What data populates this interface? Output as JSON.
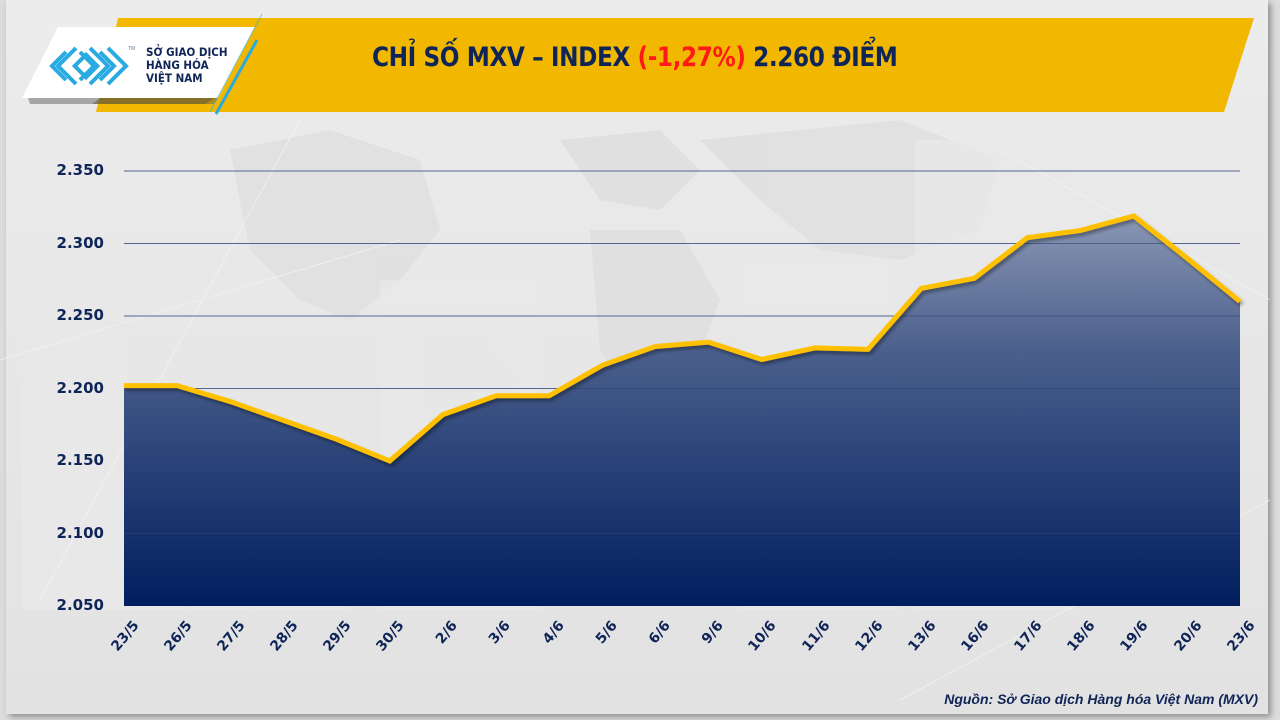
{
  "header": {
    "logo_lines": [
      "SỞ GIAO DỊCH",
      "HÀNG HÓA",
      "VIỆT NAM"
    ],
    "logo_tm": "TM",
    "title_prefix": "CHỈ SỐ MXV – INDEX ",
    "title_change": "(-1,27%)",
    "title_suffix": " 2.260 ĐIỂM"
  },
  "colors": {
    "banner": "#f2b800",
    "line": "#ffc000",
    "area_top": "#8a97b4",
    "area_bottom": "#001e5e",
    "text": "#0f2457",
    "negative": "#ff1a1a",
    "logo_blue": "#29aae2"
  },
  "footer": {
    "source": "Nguồn: Sở Giao dịch Hàng hóa Việt Nam (MXV)"
  },
  "chart_data": {
    "type": "area",
    "title": "CHỈ SỐ MXV – INDEX (-1,27%) 2.260 ĐIỂM",
    "xlabel": "",
    "ylabel": "",
    "ylim": [
      2050,
      2350
    ],
    "yticks": [
      2050,
      2100,
      2150,
      2200,
      2250,
      2300,
      2350
    ],
    "ytick_labels": [
      "2.050",
      "2.100",
      "2.150",
      "2.200",
      "2.250",
      "2.300",
      "2.350"
    ],
    "grid": true,
    "legend": "none",
    "categories": [
      "23/5",
      "26/5",
      "27/5",
      "28/5",
      "29/5",
      "30/5",
      "2/6",
      "3/6",
      "4/6",
      "5/6",
      "6/6",
      "9/6",
      "10/6",
      "11/6",
      "12/6",
      "13/6",
      "16/6",
      "17/6",
      "18/6",
      "19/6",
      "20/6",
      "23/6"
    ],
    "series": [
      {
        "name": "MXV-Index",
        "values": [
          2202,
          2202,
          2191,
          2178,
          2165,
          2150,
          2182,
          2195,
          2195,
          2216,
          2229,
          2232,
          2220,
          2228,
          2227,
          2269,
          2276,
          2304,
          2309,
          2319,
          2290,
          2260
        ]
      }
    ]
  }
}
